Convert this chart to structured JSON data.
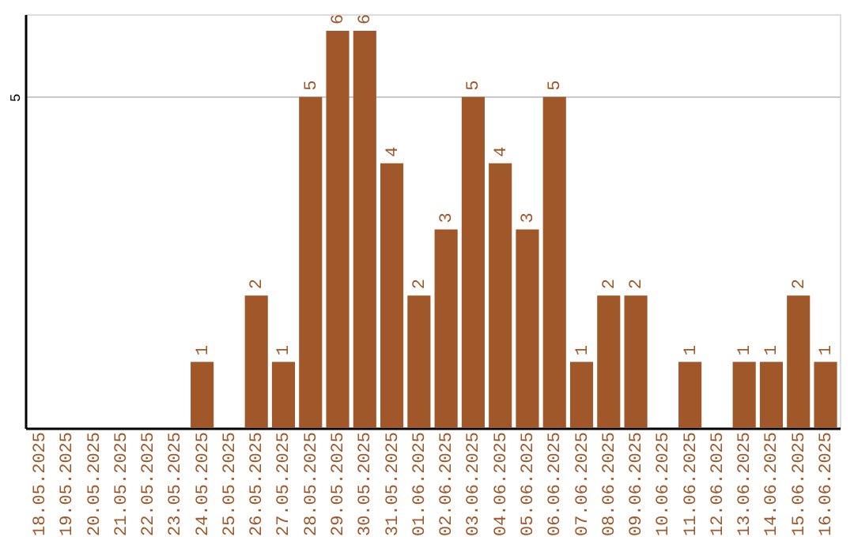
{
  "chart_data": {
    "type": "bar",
    "categories": [
      "18.05.2025",
      "19.05.2025",
      "20.05.2025",
      "21.05.2025",
      "22.05.2025",
      "23.05.2025",
      "24.05.2025",
      "25.05.2025",
      "26.05.2025",
      "27.05.2025",
      "28.05.2025",
      "29.05.2025",
      "30.05.2025",
      "31.05.2025",
      "01.06.2025",
      "02.06.2025",
      "03.06.2025",
      "04.06.2025",
      "05.06.2025",
      "06.06.2025",
      "07.06.2025",
      "08.06.2025",
      "09.06.2025",
      "10.06.2025",
      "11.06.2025",
      "12.06.2025",
      "13.06.2025",
      "14.06.2025",
      "15.06.2025",
      "16.06.2025"
    ],
    "values": [
      0,
      0,
      0,
      0,
      0,
      0,
      1,
      0,
      2,
      1,
      5,
      6,
      6,
      4,
      2,
      3,
      5,
      4,
      3,
      5,
      1,
      2,
      2,
      0,
      1,
      0,
      1,
      1,
      2,
      1
    ],
    "value_labels": [
      null,
      null,
      null,
      null,
      null,
      null,
      "1",
      null,
      "2",
      "1",
      "5",
      "6",
      "6",
      "4",
      "2",
      "3",
      "5",
      "4",
      "3",
      "5",
      "1",
      "2",
      "2",
      null,
      "1",
      null,
      "1",
      "1",
      "2",
      "1"
    ],
    "color": "#a0572a",
    "ylim": [
      0,
      6.25
    ],
    "yticks": [
      5
    ],
    "grid": "y"
  }
}
